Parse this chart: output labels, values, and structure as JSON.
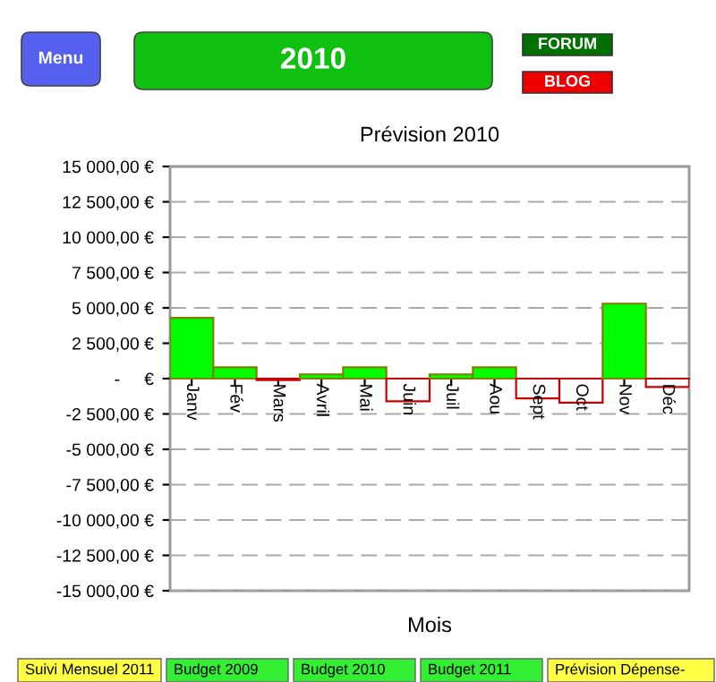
{
  "chart_data": {
    "type": "bar",
    "title": "Prévision 2010",
    "xlabel": "Mois",
    "categories": [
      "Janv",
      "Fév",
      "Mars",
      "Avril",
      "Mai",
      "Juin",
      "Juil",
      "Aou",
      "Sept",
      "Oct",
      "Nov",
      "Déc"
    ],
    "values": [
      4300,
      800,
      -100,
      300,
      800,
      -1600,
      300,
      800,
      -1400,
      -1700,
      5300,
      -600
    ],
    "colors": [
      "#00ff00",
      "#00ff00",
      "#ffffff",
      "#00ff00",
      "#00ff00",
      "#ffffff",
      "#00ff00",
      "#00ff00",
      "#ffffff",
      "#ffffff",
      "#00ff00",
      "#ffffff"
    ],
    "ylim": [
      -15000,
      15000
    ],
    "yticks": [
      {
        "value": -15000,
        "label": "-15 000,00 €"
      },
      {
        "value": -12500,
        "label": "-12 500,00 €"
      },
      {
        "value": -10000,
        "label": "-10 000,00 €"
      },
      {
        "value": -7500,
        "label": "-7 500,00 €"
      },
      {
        "value": -5000,
        "label": "-5 000,00 €"
      },
      {
        "value": -2500,
        "label": "-2 500,00 €"
      },
      {
        "value": 0,
        "label": "-     €"
      },
      {
        "value": 2500,
        "label": "2 500,00 €"
      },
      {
        "value": 5000,
        "label": "5 000,00 €"
      },
      {
        "value": 7500,
        "label": "7 500,00 €"
      },
      {
        "value": 10000,
        "label": "10 000,00 €"
      },
      {
        "value": 12500,
        "label": "12 500,00 €"
      },
      {
        "value": 15000,
        "label": "15 000,00 €"
      }
    ],
    "grid": "y",
    "annotations": [
      "Menu",
      "2010",
      "FORUM",
      "BLOG",
      "Suivi Mensuel 2011",
      "Budget 2009",
      "Budget 2010",
      "Budget 2011",
      "Prévision Dépense-"
    ]
  }
}
